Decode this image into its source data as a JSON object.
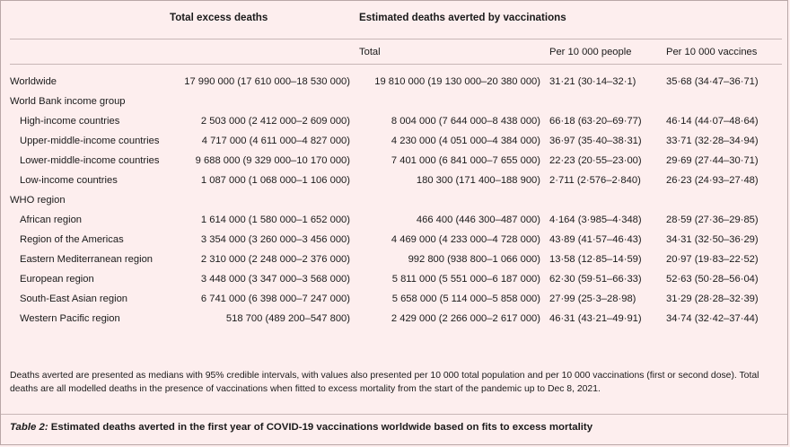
{
  "header": {
    "total_excess": "Total excess deaths",
    "estimated_averted": "Estimated deaths averted by vaccinations",
    "sub_total": "Total",
    "sub_per_people": "Per 10 000 people",
    "sub_per_vaccines": "Per 10 000 vaccines"
  },
  "rows": [
    {
      "label": "Worldwide",
      "excess": "17 990 000 (17 610 000–18 530 000)",
      "total": "19 810 000 (19 130 000–20 380 000)",
      "per_people": "31·21 (30·14–32·1)",
      "per_vaccines": "35·68 (34·47–36·71)"
    },
    {
      "label": "World Bank income group"
    },
    {
      "label": "High-income countries",
      "excess": "2 503 000 (2 412 000–2 609 000)",
      "total": "8 004 000 (7 644 000–8 438 000)",
      "per_people": "66·18 (63·20–69·77)",
      "per_vaccines": "46·14 (44·07–48·64)"
    },
    {
      "label": "Upper-middle-income countries",
      "excess": "4 717 000 (4 611 000–4 827 000)",
      "total": "4 230 000 (4 051 000–4 384 000)",
      "per_people": "36·97 (35·40–38·31)",
      "per_vaccines": "33·71 (32·28–34·94)"
    },
    {
      "label": "Lower-middle-income countries",
      "excess": "9 688 000 (9 329 000–10 170 000)",
      "total": "7 401 000 (6 841 000–7 655 000)",
      "per_people": "22·23 (20·55–23·00)",
      "per_vaccines": "29·69 (27·44–30·71)"
    },
    {
      "label": "Low-income countries",
      "excess": "1 087 000 (1 068 000–1 106 000)",
      "total": "180 300 (171 400–188 900)",
      "per_people": "2·711 (2·576–2·840)",
      "per_vaccines": "26·23 (24·93–27·48)"
    },
    {
      "label": "WHO region"
    },
    {
      "label": "African region",
      "excess": "1 614 000 (1 580 000–1 652 000)",
      "total": "466 400 (446 300–487 000)",
      "per_people": "4·164 (3·985–4·348)",
      "per_vaccines": "28·59 (27·36–29·85)"
    },
    {
      "label": "Region of the Americas",
      "excess": "3 354 000 (3 260 000–3 456 000)",
      "total": "4 469 000 (4 233 000–4 728 000)",
      "per_people": "43·89 (41·57–46·43)",
      "per_vaccines": "34·31 (32·50–36·29)"
    },
    {
      "label": "Eastern Mediterranean region",
      "excess": "2 310 000 (2 248 000–2 376 000)",
      "total": "992 800 (938 800–1 066 000)",
      "per_people": "13·58 (12·85–14·59)",
      "per_vaccines": "20·97 (19·83–22·52)"
    },
    {
      "label": "European region",
      "excess": "3 448 000 (3 347 000–3 568 000)",
      "total": "5 811 000 (5 551 000–6 187 000)",
      "per_people": "62·30 (59·51–66·33)",
      "per_vaccines": "52·63 (50·28–56·04)"
    },
    {
      "label": "South-East Asian region",
      "excess": "6 741 000 (6 398 000–7 247 000)",
      "total": "5 658 000 (5 114 000–5 858 000)",
      "per_people": "27·99 (25·3–28·98)",
      "per_vaccines": "31·29 (28·28–32·39)"
    },
    {
      "label": "Western Pacific region",
      "excess": "518 700 (489 200–547 800)",
      "total": "2 429 000 (2 266 000–2 617 000)",
      "per_people": "46·31 (43·21–49·91)",
      "per_vaccines": "34·74 (32·42–37·44)"
    }
  ],
  "note": "Deaths averted are presented as medians with 95% credible intervals, with values also presented per 10 000 total population and per 10 000 vaccinations (first or second dose). Total deaths are all modelled deaths in the presence of vaccinations when fitted to excess mortality from the start of the pandemic up to Dec 8, 2021.",
  "caption": {
    "label": "Table 2:",
    "text": " Estimated deaths averted in the first year of COVID-19 vaccinations worldwide based on fits to excess mortality"
  }
}
